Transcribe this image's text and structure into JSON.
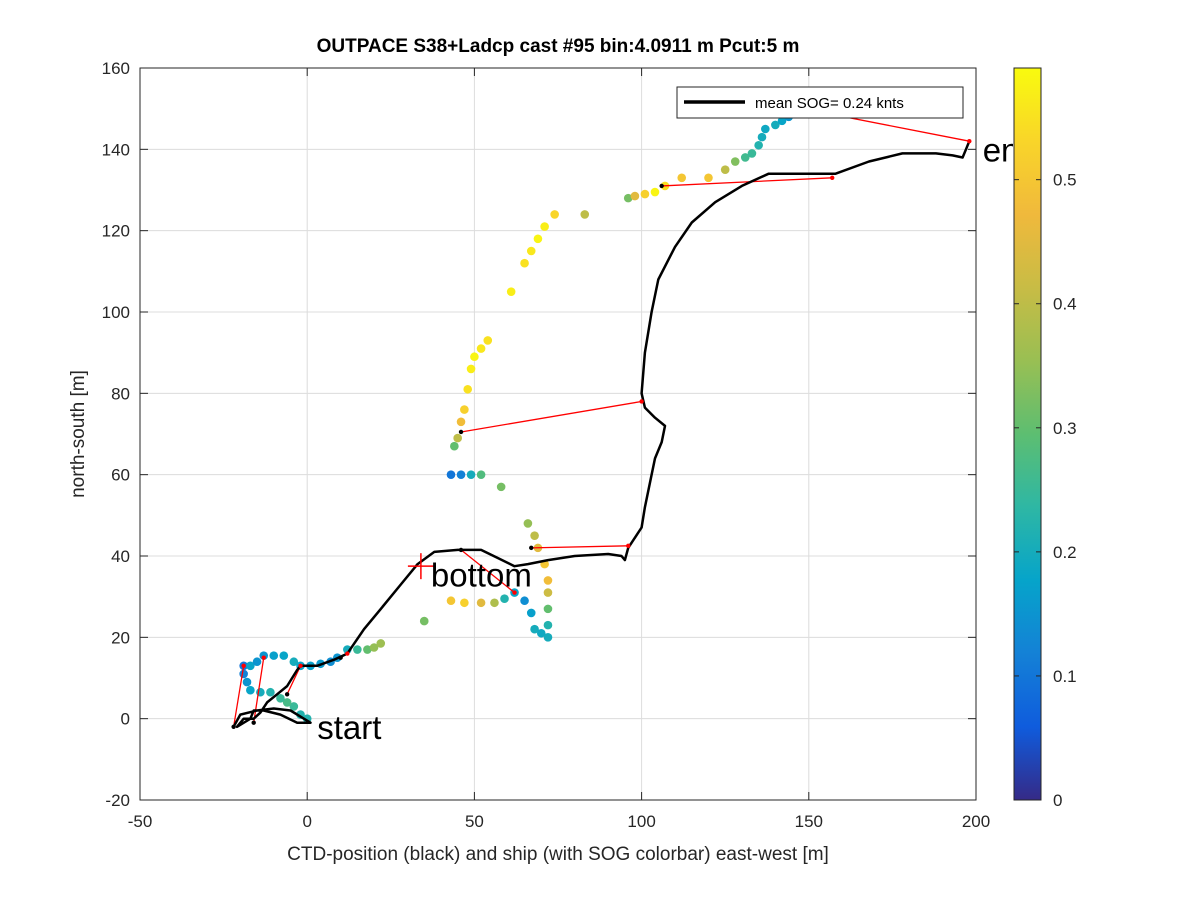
{
  "chart_data": {
    "type": "scatter",
    "title": "OUTPACE S38+Ladcp cast #95 bin:4.0911 m  Pcut:5 m",
    "xlabel": "CTD-position (black) and ship (with SOG colorbar) east-west [m]",
    "ylabel": "north-south [m]",
    "xlim": [
      -50,
      200
    ],
    "ylim": [
      -20,
      160
    ],
    "xticks": [
      -50,
      0,
      50,
      100,
      150,
      200
    ],
    "yticks": [
      -20,
      0,
      20,
      40,
      60,
      80,
      100,
      120,
      140,
      160
    ],
    "grid": true,
    "legend": {
      "placement": "top-right",
      "entries": [
        "mean SOG=  0.24 knts"
      ]
    },
    "colorbar": {
      "label": "",
      "range": [
        0,
        0.59
      ],
      "ticks": [
        0,
        0.1,
        0.2,
        0.3,
        0.4,
        0.5
      ],
      "colormap": "parula"
    },
    "annotations": [
      {
        "text": "start",
        "x": 3,
        "y": -2
      },
      {
        "text": "bottom",
        "x": 37,
        "y": 35.5
      },
      {
        "text": "end",
        "x": 202,
        "y": 140
      }
    ],
    "markers": [
      {
        "label": "bottom",
        "symbol": "+",
        "x": 34,
        "y": 37.5,
        "color": "#ff0000"
      }
    ],
    "series": [
      {
        "role": "ctd_track",
        "color": "#000000",
        "points": [
          [
            -22,
            -2
          ],
          [
            -20,
            1
          ],
          [
            -15,
            2
          ],
          [
            -10,
            2.5
          ],
          [
            -5,
            2
          ],
          [
            -1,
            0
          ],
          [
            1,
            -1
          ],
          [
            -3,
            -1
          ],
          [
            -8,
            1
          ],
          [
            -13,
            2
          ],
          [
            -16,
            2
          ],
          [
            -17,
            0
          ],
          [
            -21,
            -2
          ],
          [
            -19,
            0
          ],
          [
            -16,
            0
          ],
          [
            -14,
            1.5
          ],
          [
            -12,
            4
          ],
          [
            -9,
            6
          ],
          [
            -6,
            8
          ],
          [
            -3,
            12
          ],
          [
            -2,
            13
          ],
          [
            3,
            13
          ],
          [
            8,
            14.5
          ],
          [
            12,
            16
          ],
          [
            17,
            22
          ],
          [
            22,
            27
          ],
          [
            28,
            33
          ],
          [
            33,
            38
          ],
          [
            38,
            41
          ],
          [
            45,
            41.5
          ],
          [
            52,
            41.5
          ],
          [
            57,
            39.5
          ],
          [
            62,
            37.5
          ],
          [
            66,
            38
          ],
          [
            72,
            39
          ],
          [
            80,
            40
          ],
          [
            90,
            40.5
          ],
          [
            94,
            40
          ],
          [
            95,
            39
          ],
          [
            96,
            42
          ],
          [
            100,
            47
          ],
          [
            101,
            52
          ],
          [
            103,
            60
          ],
          [
            104,
            64
          ],
          [
            106,
            68
          ],
          [
            107,
            72
          ],
          [
            104,
            74
          ],
          [
            101,
            76.5
          ],
          [
            100,
            80
          ],
          [
            101,
            90
          ],
          [
            103,
            100
          ],
          [
            105,
            108
          ],
          [
            110,
            116
          ],
          [
            115,
            122
          ],
          [
            122,
            127
          ],
          [
            130,
            131
          ],
          [
            138,
            134
          ],
          [
            145,
            134
          ],
          [
            152,
            134
          ],
          [
            158,
            134
          ],
          [
            168,
            137
          ],
          [
            178,
            139
          ],
          [
            188,
            139
          ],
          [
            193,
            138.5
          ],
          [
            196,
            138
          ],
          [
            197,
            140
          ],
          [
            198,
            142
          ]
        ]
      },
      {
        "role": "ship_positions_colored_by_SOG",
        "points": [
          [
            0,
            0,
            0.22
          ],
          [
            -2,
            1,
            0.22
          ],
          [
            -4,
            3,
            0.25
          ],
          [
            -6,
            4,
            0.27
          ],
          [
            -8,
            5,
            0.25
          ],
          [
            -11,
            6.5,
            0.22
          ],
          [
            -14,
            6.5,
            0.2
          ],
          [
            -17,
            7,
            0.18
          ],
          [
            -18,
            9,
            0.15
          ],
          [
            -19,
            11,
            0.12
          ],
          [
            -19,
            13,
            0.1
          ],
          [
            -17,
            13,
            0.18
          ],
          [
            -15,
            14,
            0.15
          ],
          [
            -13,
            15.5,
            0.15
          ],
          [
            -10,
            15.5,
            0.17
          ],
          [
            -7,
            15.5,
            0.18
          ],
          [
            -4,
            14,
            0.2
          ],
          [
            -2,
            13,
            0.18
          ],
          [
            1,
            13,
            0.17
          ],
          [
            4,
            13.5,
            0.16
          ],
          [
            7,
            14,
            0.14
          ],
          [
            9,
            15,
            0.15
          ],
          [
            12,
            17,
            0.2
          ],
          [
            15,
            17,
            0.25
          ],
          [
            18,
            17,
            0.3
          ],
          [
            20,
            17.5,
            0.35
          ],
          [
            22,
            18.5,
            0.36
          ],
          [
            35,
            24,
            0.32
          ],
          [
            43,
            29,
            0.5
          ],
          [
            47,
            28.5,
            0.52
          ],
          [
            52,
            28.5,
            0.45
          ],
          [
            56,
            28.5,
            0.38
          ],
          [
            59,
            29.5,
            0.22
          ],
          [
            62,
            31,
            0.18
          ],
          [
            65,
            29,
            0.14
          ],
          [
            67,
            26,
            0.17
          ],
          [
            68,
            22,
            0.2
          ],
          [
            70,
            21,
            0.19
          ],
          [
            72,
            20,
            0.2
          ],
          [
            72,
            23,
            0.22
          ],
          [
            72,
            27,
            0.3
          ],
          [
            72,
            31,
            0.42
          ],
          [
            72,
            34,
            0.48
          ],
          [
            71,
            38,
            0.5
          ],
          [
            69,
            42,
            0.45
          ],
          [
            68,
            45,
            0.4
          ],
          [
            66,
            48,
            0.35
          ],
          [
            58,
            57,
            0.32
          ],
          [
            43,
            60,
            0.1
          ],
          [
            46,
            60,
            0.12
          ],
          [
            49,
            60,
            0.2
          ],
          [
            52,
            60,
            0.28
          ],
          [
            44,
            67,
            0.3
          ],
          [
            45,
            69,
            0.4
          ],
          [
            46,
            73,
            0.48
          ],
          [
            47,
            76,
            0.52
          ],
          [
            48,
            81,
            0.55
          ],
          [
            49,
            86,
            0.57
          ],
          [
            50,
            89,
            0.58
          ],
          [
            52,
            91,
            0.56
          ],
          [
            54,
            93,
            0.55
          ],
          [
            61,
            105,
            0.57
          ],
          [
            65,
            112,
            0.55
          ],
          [
            67,
            115,
            0.56
          ],
          [
            69,
            118,
            0.58
          ],
          [
            71,
            121,
            0.57
          ],
          [
            74,
            124,
            0.53
          ],
          [
            83,
            124,
            0.4
          ],
          [
            96,
            128,
            0.32
          ],
          [
            98,
            128.5,
            0.45
          ],
          [
            101,
            129,
            0.52
          ],
          [
            104,
            129.5,
            0.58
          ],
          [
            107,
            131,
            0.55
          ],
          [
            112,
            133,
            0.5
          ],
          [
            120,
            133,
            0.5
          ],
          [
            125,
            135,
            0.4
          ],
          [
            128,
            137,
            0.33
          ],
          [
            131,
            138,
            0.26
          ],
          [
            133,
            139,
            0.25
          ],
          [
            135,
            141,
            0.22
          ],
          [
            136,
            143,
            0.2
          ],
          [
            137,
            145,
            0.19
          ],
          [
            140,
            146,
            0.2
          ],
          [
            142,
            147,
            0.18
          ],
          [
            144,
            148,
            0.15
          ]
        ]
      },
      {
        "role": "ctd_ship_links",
        "color": "#ff0000",
        "segments": [
          [
            -22,
            -2,
            -19,
            13
          ],
          [
            -16,
            -1,
            -13,
            15
          ],
          [
            -6,
            6,
            -2,
            13
          ],
          [
            10,
            15,
            12,
            16
          ],
          [
            46,
            41.5,
            62,
            31
          ],
          [
            67,
            42,
            96,
            42.5
          ],
          [
            46,
            70.5,
            100,
            78
          ],
          [
            106,
            131,
            157,
            133
          ],
          [
            142,
            151,
            198,
            142
          ]
        ]
      }
    ]
  }
}
